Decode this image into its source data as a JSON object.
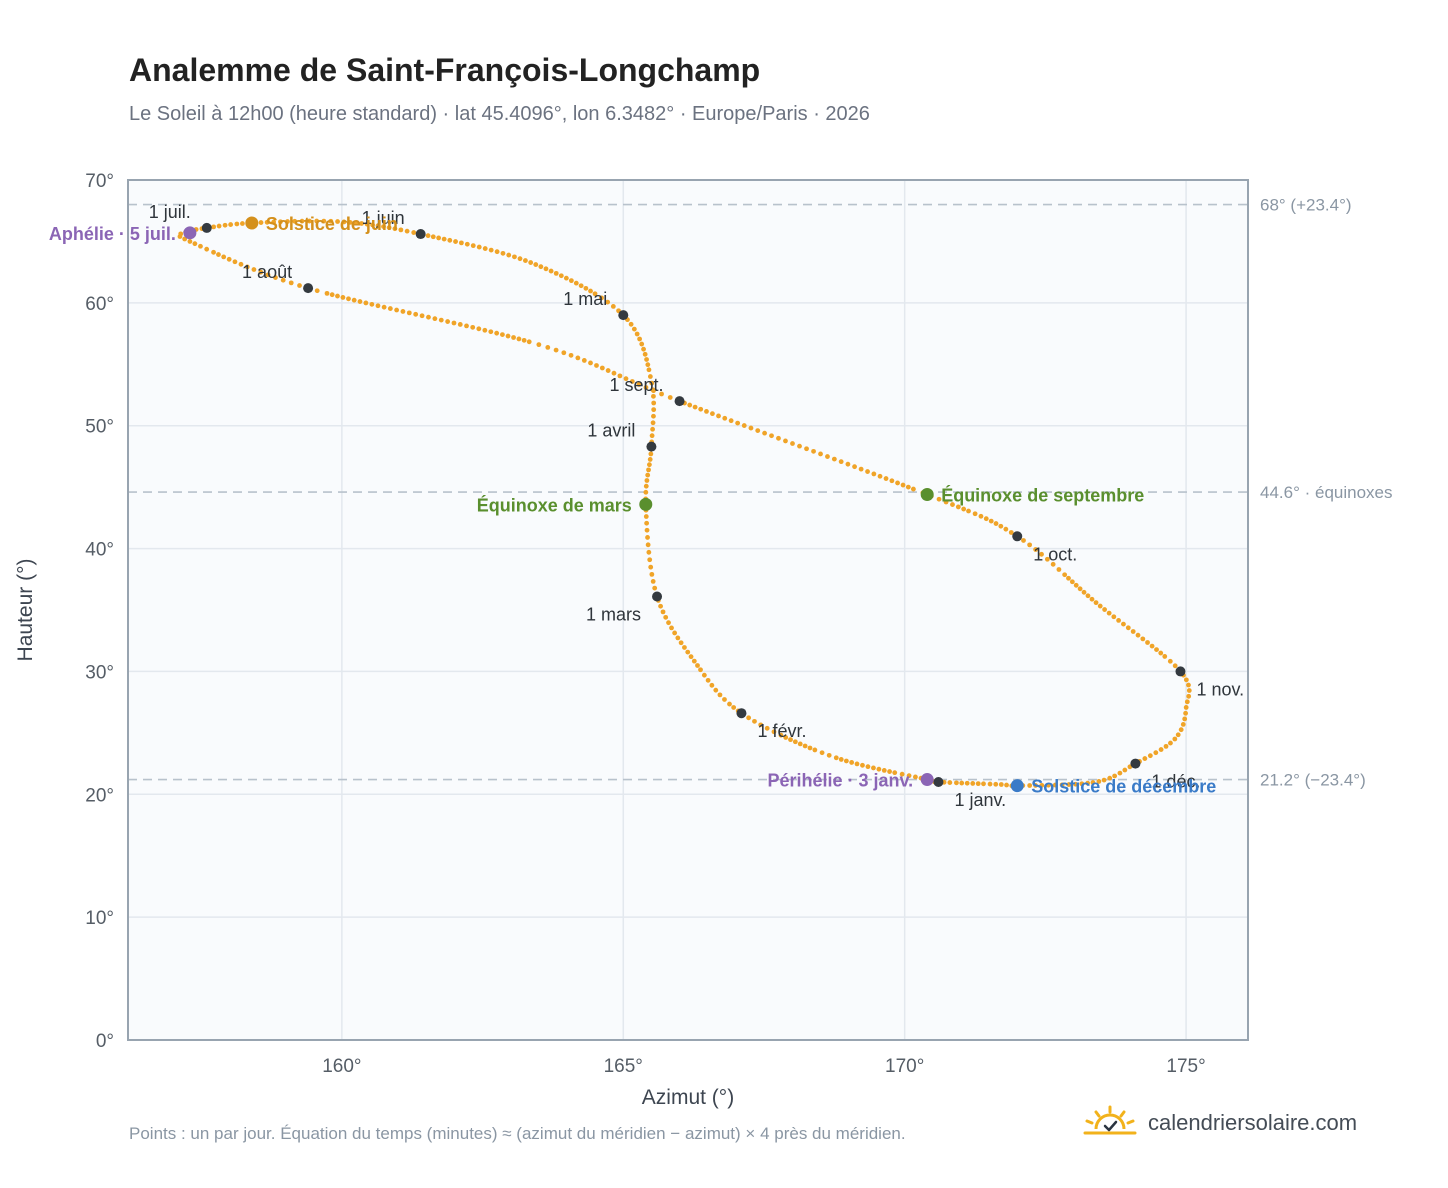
{
  "title": "Analemme de Saint-François-Longchamp",
  "subtitle": "Le Soleil à 12h00 (heure standard) · lat 45.4096°, lon 6.3482° · Europe/Paris · 2026",
  "footnote": "Points : un par jour. Équation du temps (minutes) ≈ (azimut du méridien − azimut) × 4 près du méridien.",
  "brand": {
    "name": "calendriersolaire.com",
    "logo_icon": "sun-logo-icon"
  },
  "colors": {
    "curve": "#f0a428",
    "month_marker": "#343a40",
    "solstice_june": "#d4901c",
    "solstice_december": "#3a7bc8",
    "equinox": "#5a8f2e",
    "aphelion_perihelion": "#8b65b5",
    "reference_line": "#b8c2cc",
    "plot_background": "#f9fbfd",
    "grid": "#e3e8ee",
    "frame": "#98a4b0"
  },
  "chart_data": {
    "type": "scatter",
    "xlabel": "Azimut (°)",
    "ylabel": "Hauteur (°)",
    "xlim": [
      156.2,
      176.1
    ],
    "ylim": [
      0,
      70
    ],
    "x_ticks": [
      {
        "value": 160,
        "label": "160°"
      },
      {
        "value": 165,
        "label": "165°"
      },
      {
        "value": 170,
        "label": "170°"
      },
      {
        "value": 175,
        "label": "175°"
      }
    ],
    "y_ticks": [
      {
        "value": 0,
        "label": "0°"
      },
      {
        "value": 10,
        "label": "10°"
      },
      {
        "value": 20,
        "label": "20°"
      },
      {
        "value": 30,
        "label": "30°"
      },
      {
        "value": 40,
        "label": "40°"
      },
      {
        "value": 50,
        "label": "50°"
      },
      {
        "value": 60,
        "label": "60°"
      },
      {
        "value": 70,
        "label": "70°"
      }
    ],
    "grid": true,
    "reference_lines": [
      {
        "y": 68.0,
        "label": "68° (+23.4°)"
      },
      {
        "y": 44.6,
        "label": "44.6° · équinoxes"
      },
      {
        "y": 21.2,
        "label": "21.2° (−23.4°)"
      }
    ],
    "series": [
      {
        "points": [
          {
            "x": 170.6,
            "y": 21.0
          },
          {
            "x": 171.7,
            "y": 20.8
          },
          {
            "x": 172.0,
            "y": 20.7
          },
          {
            "x": 173.4,
            "y": 21.0
          },
          {
            "x": 174.1,
            "y": 22.5
          },
          {
            "x": 174.8,
            "y": 24.5
          },
          {
            "x": 175.0,
            "y": 27.0
          },
          {
            "x": 174.9,
            "y": 30.0
          },
          {
            "x": 173.4,
            "y": 35.6
          },
          {
            "x": 172.0,
            "y": 41.0
          },
          {
            "x": 170.4,
            "y": 44.4
          },
          {
            "x": 166.0,
            "y": 52.0
          },
          {
            "x": 163.5,
            "y": 56.6
          },
          {
            "x": 159.4,
            "y": 61.2
          },
          {
            "x": 157.3,
            "y": 65.0
          },
          {
            "x": 157.2,
            "y": 65.7
          },
          {
            "x": 157.6,
            "y": 66.1
          },
          {
            "x": 158.4,
            "y": 66.5
          },
          {
            "x": 160.0,
            "y": 66.6
          },
          {
            "x": 161.4,
            "y": 65.6
          },
          {
            "x": 163.4,
            "y": 63.2
          },
          {
            "x": 165.0,
            "y": 59.0
          },
          {
            "x": 165.5,
            "y": 53.6
          },
          {
            "x": 165.5,
            "y": 48.3
          },
          {
            "x": 165.4,
            "y": 43.6
          },
          {
            "x": 165.6,
            "y": 36.1
          },
          {
            "x": 166.3,
            "y": 30.6
          },
          {
            "x": 167.1,
            "y": 26.6
          },
          {
            "x": 168.7,
            "y": 23.1
          },
          {
            "x": 170.4,
            "y": 21.2
          },
          {
            "x": 170.6,
            "y": 21.0
          }
        ]
      }
    ],
    "month_markers": [
      {
        "label": "1 janv.",
        "x": 170.6,
        "y": 21.0,
        "anchor": "below-right"
      },
      {
        "label": "1 févr.",
        "x": 167.1,
        "y": 26.6,
        "anchor": "below-right"
      },
      {
        "label": "1 mars",
        "x": 165.6,
        "y": 36.1,
        "anchor": "below-left"
      },
      {
        "label": "1 avril",
        "x": 165.5,
        "y": 48.3,
        "anchor": "above-left"
      },
      {
        "label": "1 mai",
        "x": 165.0,
        "y": 59.0,
        "anchor": "above-left"
      },
      {
        "label": "1 juin",
        "x": 161.4,
        "y": 65.6,
        "anchor": "above-left"
      },
      {
        "label": "1 juil.",
        "x": 157.6,
        "y": 66.1,
        "anchor": "above-left"
      },
      {
        "label": "1 août",
        "x": 159.4,
        "y": 61.2,
        "anchor": "above-left"
      },
      {
        "label": "1 sept.",
        "x": 166.0,
        "y": 52.0,
        "anchor": "above-left"
      },
      {
        "label": "1 oct.",
        "x": 172.0,
        "y": 41.0,
        "anchor": "below-right"
      },
      {
        "label": "1 nov.",
        "x": 174.9,
        "y": 30.0,
        "anchor": "below-right"
      },
      {
        "label": "1 déc.",
        "x": 174.1,
        "y": 22.5,
        "anchor": "below-right"
      }
    ],
    "events": [
      {
        "label": "Solstice de juin",
        "x": 158.4,
        "y": 66.5,
        "color": "#d4901c",
        "side": "right"
      },
      {
        "label": "Solstice de décembre",
        "x": 172.0,
        "y": 20.7,
        "color": "#3a7bc8",
        "side": "right"
      },
      {
        "label": "Équinoxe de mars",
        "x": 165.4,
        "y": 43.6,
        "color": "#5a8f2e",
        "side": "left"
      },
      {
        "label": "Équinoxe de septembre",
        "x": 170.4,
        "y": 44.4,
        "color": "#5a8f2e",
        "side": "right"
      },
      {
        "label": "Aphélie · 5 juil.",
        "x": 157.3,
        "y": 65.7,
        "color": "#8b65b5",
        "side": "left"
      },
      {
        "label": "Périhélie · 3 janv.",
        "x": 170.4,
        "y": 21.2,
        "color": "#8b65b5",
        "side": "left"
      }
    ]
  }
}
